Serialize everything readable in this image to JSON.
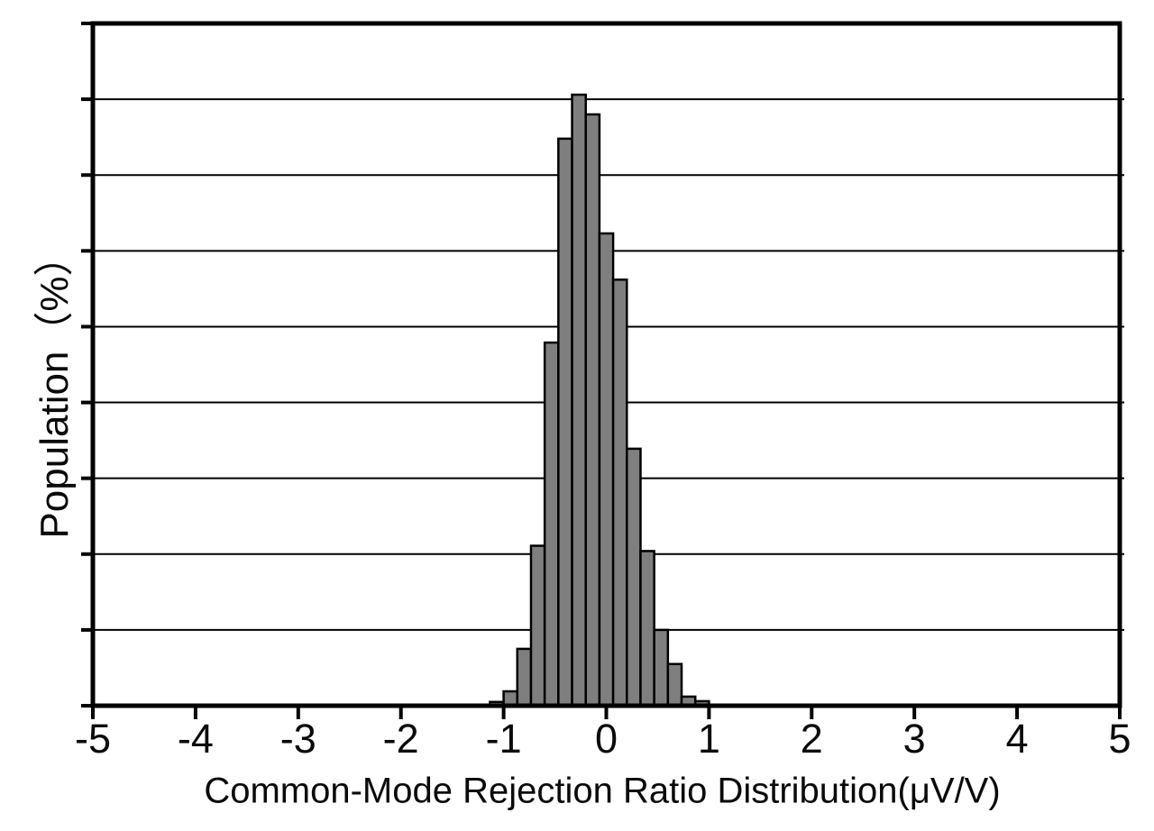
{
  "chart_data": {
    "type": "bar",
    "subtype": "histogram",
    "title": "",
    "xlabel": "Common-Mode Rejection Ratio Distribution(μV/V)",
    "ylabel": "Population（%）",
    "xlim": [
      -5,
      5
    ],
    "x_tick_values": [
      -5,
      -4,
      -3,
      -2,
      -1,
      0,
      1,
      2,
      3,
      4,
      5
    ],
    "x_tick_labels": [
      "-5",
      "-4",
      "-3",
      "-2",
      "-1",
      "0",
      "1",
      "2",
      "3",
      "4",
      "5"
    ],
    "y_axis_divisions": 9,
    "y_axis_numeric_labels_visible": false,
    "grid": "horizontal",
    "legend": "none",
    "bar_fill_color": "#7f7f7f",
    "bar_edge_color": "#000000",
    "axis_color": "#000000",
    "background_color": "#ffffff",
    "bin_width": 0.1333,
    "bin_edges": [
      -1.1333,
      -1.0,
      -0.8667,
      -0.7333,
      -0.6,
      -0.4667,
      -0.3333,
      -0.2,
      -0.0667,
      0.0667,
      0.2,
      0.3333,
      0.4667,
      0.6,
      0.7333,
      0.8667,
      1.0
    ],
    "heights_in_axis_divisions": [
      0.05,
      0.19,
      0.75,
      2.11,
      4.79,
      7.48,
      8.06,
      7.8,
      6.23,
      5.62,
      3.39,
      2.04,
      1.0,
      0.55,
      0.12,
      0.06
    ],
    "est_population_pct": [
      0.1,
      0.4,
      1.5,
      4.2,
      9.6,
      15.0,
      16.1,
      15.6,
      12.5,
      11.2,
      6.8,
      4.1,
      2.0,
      1.1,
      0.25,
      0.12
    ]
  }
}
